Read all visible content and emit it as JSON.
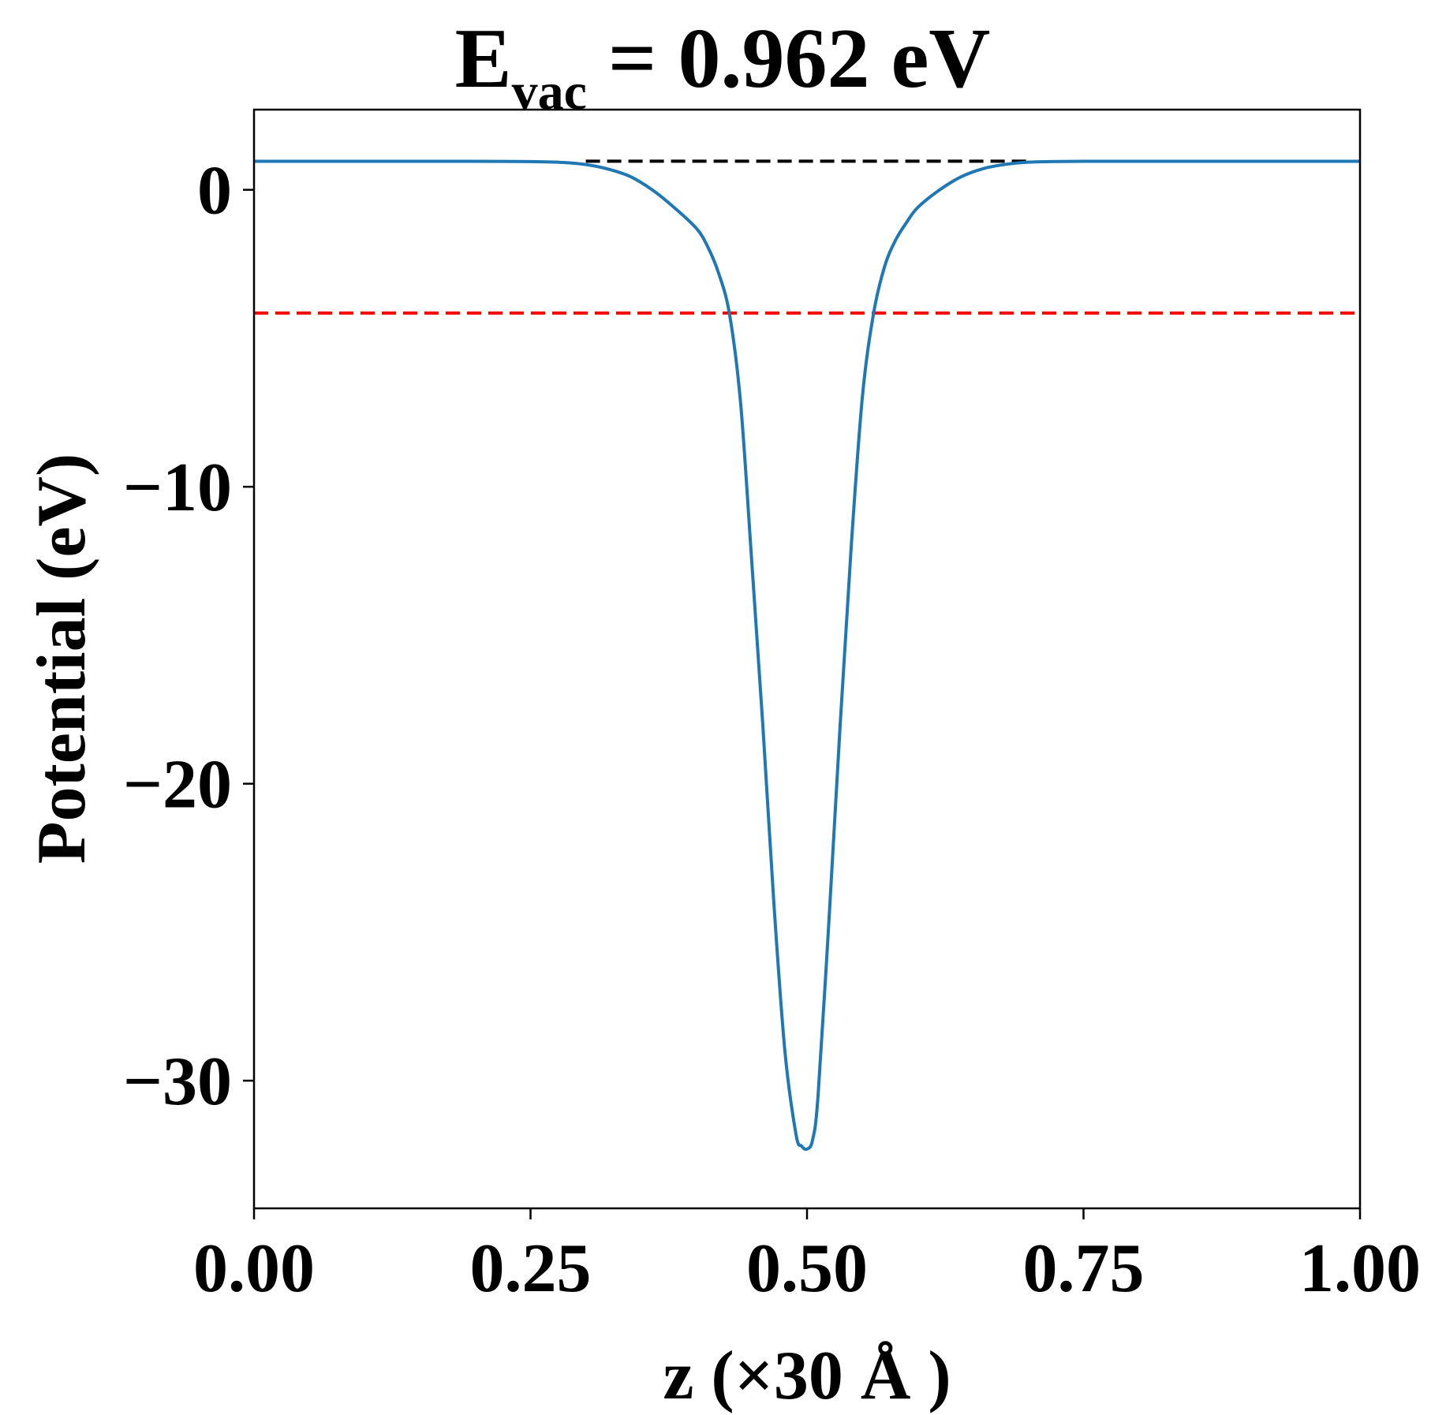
{
  "chart_data": {
    "type": "line",
    "title": {
      "main": "E",
      "subscript": "vac",
      "rest": " = 0.962 eV"
    },
    "xlabel": "z (×30 Å )",
    "ylabel": "Potential (eV)",
    "xlim": [
      0.0,
      1.0
    ],
    "ylim": [
      -34.3,
      2.7
    ],
    "x_ticks": [
      0.0,
      0.25,
      0.5,
      0.75,
      1.0
    ],
    "x_tick_labels": [
      "0.00",
      "0.25",
      "0.50",
      "0.75",
      "1.00"
    ],
    "y_ticks": [
      0,
      -10,
      -20,
      -30
    ],
    "y_tick_labels": [
      "0",
      "−10",
      "−20",
      "−30"
    ],
    "grid": false,
    "series": [
      {
        "color": "#1f77b4",
        "x": [
          0.0,
          0.05,
          0.1,
          0.15,
          0.2,
          0.25,
          0.28,
          0.3,
          0.32,
          0.34,
          0.36,
          0.38,
          0.4,
          0.41,
          0.42,
          0.43,
          0.44,
          0.45,
          0.46,
          0.47,
          0.48,
          0.49,
          0.495,
          0.5,
          0.505,
          0.51,
          0.52,
          0.53,
          0.54,
          0.55,
          0.56,
          0.57,
          0.58,
          0.59,
          0.6,
          0.62,
          0.64,
          0.66,
          0.68,
          0.7,
          0.72,
          0.75,
          0.8,
          0.85,
          0.9,
          0.95,
          1.0
        ],
        "y": [
          0.96,
          0.96,
          0.96,
          0.96,
          0.96,
          0.95,
          0.92,
          0.85,
          0.7,
          0.45,
          0.0,
          -0.6,
          -1.3,
          -1.9,
          -2.8,
          -4.2,
          -7.2,
          -12.5,
          -18.0,
          -24.0,
          -29.0,
          -31.8,
          -32.2,
          -32.3,
          -32.0,
          -30.5,
          -24.5,
          -18.0,
          -12.0,
          -7.0,
          -4.2,
          -2.6,
          -1.7,
          -1.1,
          -0.6,
          0.0,
          0.45,
          0.72,
          0.86,
          0.93,
          0.95,
          0.96,
          0.96,
          0.96,
          0.96,
          0.96,
          0.96
        ]
      }
    ],
    "reference_lines": [
      {
        "y": 0.962,
        "color": "#000000",
        "style": "dashed",
        "x_range": [
          0.3,
          0.7
        ]
      },
      {
        "y": -4.15,
        "color": "#ff0000",
        "style": "dashed",
        "x_range": [
          0.0,
          1.0
        ]
      }
    ]
  }
}
